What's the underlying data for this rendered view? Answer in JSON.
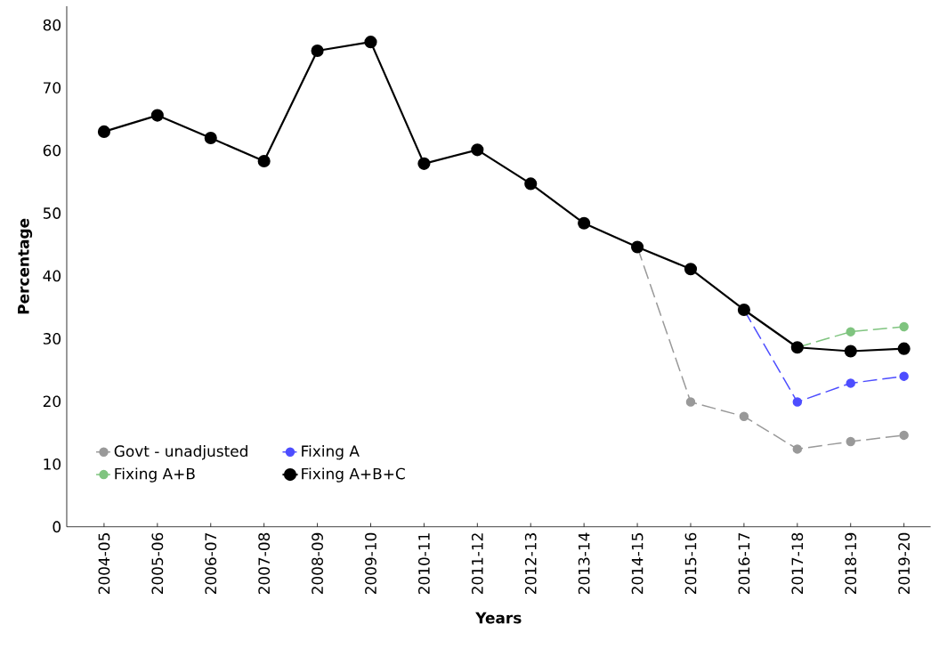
{
  "chart_data": {
    "type": "line",
    "xlabel": "Years",
    "ylabel": "Percentage",
    "categories": [
      "2004-05",
      "2005-06",
      "2006-07",
      "2007-08",
      "2008-09",
      "2009-10",
      "2010-11",
      "2011-12",
      "2012-13",
      "2013-14",
      "2014-15",
      "2015-16",
      "2016-17",
      "2017-18",
      "2018-19",
      "2019-20"
    ],
    "series": [
      {
        "name": "Govt - unadjusted",
        "color": "#999999",
        "line_style": "dashed",
        "values": [
          null,
          null,
          null,
          null,
          null,
          null,
          null,
          null,
          null,
          null,
          44.6,
          19.9,
          17.6,
          12.4,
          13.6,
          14.6
        ]
      },
      {
        "name": "Fixing A",
        "color": "#4d4dff",
        "line_style": "dashed",
        "values": [
          null,
          null,
          null,
          null,
          null,
          null,
          null,
          null,
          null,
          null,
          null,
          null,
          34.6,
          19.9,
          22.9,
          24.0
        ]
      },
      {
        "name": "Fixing A+B",
        "color": "#7fc47f",
        "line_style": "dashed",
        "values": [
          null,
          null,
          null,
          null,
          null,
          null,
          null,
          null,
          null,
          null,
          null,
          null,
          null,
          28.6,
          31.1,
          31.9
        ]
      },
      {
        "name": "Fixing A+B+C",
        "color": "#000000",
        "line_style": "solid",
        "values": [
          63.0,
          65.6,
          62.0,
          58.3,
          75.9,
          77.3,
          57.9,
          60.1,
          54.7,
          48.4,
          44.6,
          41.1,
          34.6,
          28.6,
          28.0,
          28.4
        ]
      }
    ],
    "ylim": [
      0,
      83
    ],
    "yticks": [
      0,
      10,
      20,
      30,
      40,
      50,
      60,
      70,
      80
    ],
    "marker": "circle",
    "legend": "bottom left",
    "grid": false
  }
}
